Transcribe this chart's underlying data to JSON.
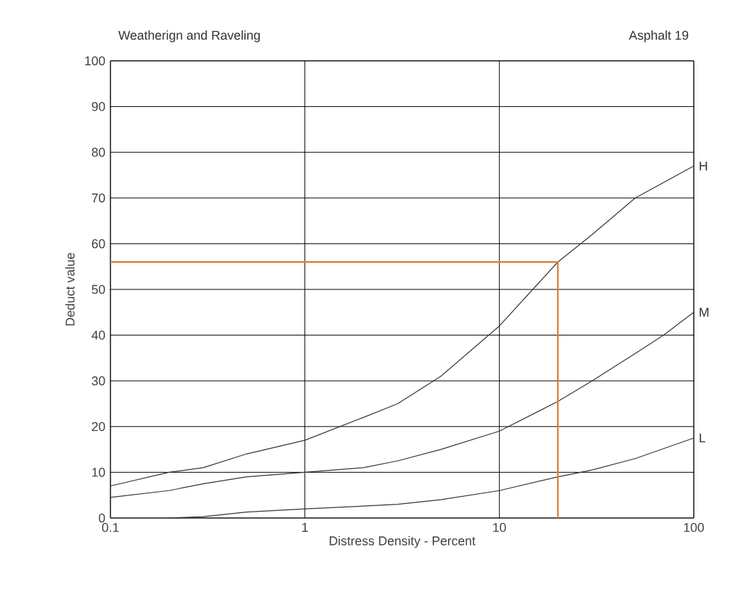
{
  "chart_data": {
    "type": "line",
    "title": "Weatherign and Raveling",
    "subtitle": "Asphalt 19",
    "xlabel": "Distress Density - Percent",
    "ylabel": "Deduct value",
    "log": "x",
    "grid": true,
    "marker": "none",
    "xlim": [
      0.1,
      100
    ],
    "ylim": [
      0,
      100
    ],
    "xticks": [
      0.1,
      1,
      10,
      100
    ],
    "yticks": [
      0,
      10,
      20,
      30,
      40,
      50,
      60,
      70,
      80,
      90,
      100
    ],
    "series": [
      {
        "name": "H",
        "color": "#333333",
        "x": [
          0.1,
          0.2,
          0.3,
          0.5,
          1,
          2,
          3,
          5,
          10,
          20,
          30,
          50,
          100
        ],
        "values": [
          7,
          10,
          11,
          14,
          17,
          22,
          25,
          31,
          42,
          56,
          62,
          70,
          77
        ]
      },
      {
        "name": "M",
        "color": "#333333",
        "x": [
          0.1,
          0.2,
          0.3,
          0.5,
          1,
          2,
          3,
          5,
          10,
          20,
          30,
          50,
          70,
          100
        ],
        "values": [
          4.5,
          6,
          7.5,
          9,
          10,
          11,
          12.5,
          15,
          19,
          25.5,
          30,
          36,
          40,
          45
        ]
      },
      {
        "name": "L",
        "color": "#333333",
        "x": [
          0.2,
          0.3,
          0.5,
          1,
          2,
          3,
          5,
          10,
          20,
          30,
          50,
          100
        ],
        "values": [
          0,
          0.3,
          1.3,
          2,
          2.6,
          3,
          4,
          6,
          9,
          10.5,
          13,
          17.5
        ]
      },
      {
        "color": "#d9823b",
        "x": [
          0.1,
          20,
          20
        ],
        "values": [
          56,
          56,
          0
        ]
      }
    ]
  }
}
